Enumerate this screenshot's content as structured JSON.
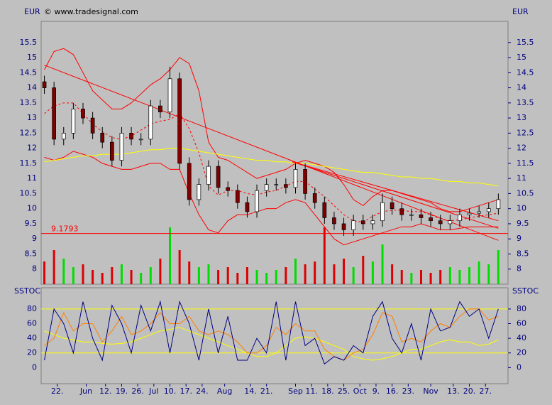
{
  "chart_data": [
    {
      "type": "candlestick",
      "title": "© www.tradesignal.com",
      "ylabel": "EUR",
      "x": [
        0,
        3,
        6,
        9,
        12,
        15,
        18,
        21,
        24,
        27,
        30,
        33,
        36,
        39,
        42,
        45,
        48,
        51,
        54,
        57,
        60,
        63,
        66,
        69,
        72,
        75,
        78,
        81,
        84,
        87,
        90,
        93,
        96,
        99,
        102,
        105,
        108,
        111,
        114,
        117,
        120,
        123,
        126,
        129,
        132,
        135,
        138,
        141
      ],
      "open": [
        14.2,
        14.0,
        12.3,
        12.5,
        13.3,
        13.0,
        12.5,
        12.2,
        11.6,
        12.5,
        12.3,
        12.3,
        13.4,
        13.2,
        14.3,
        11.5,
        10.3,
        10.8,
        11.4,
        10.7,
        10.6,
        10.2,
        9.9,
        10.6,
        10.8,
        10.8,
        10.7,
        11.3,
        10.5,
        10.2,
        9.7,
        9.5,
        9.3,
        9.6,
        9.5,
        9.6,
        10.2,
        10.0,
        9.8,
        9.8,
        9.7,
        9.6,
        9.5,
        9.6,
        9.8,
        9.85,
        9.9,
        10.0
      ],
      "high": [
        14.4,
        14.2,
        12.7,
        13.5,
        13.5,
        13.2,
        12.7,
        12.4,
        12.7,
        12.7,
        12.5,
        13.6,
        13.6,
        14.7,
        14.5,
        11.7,
        11.0,
        11.6,
        11.6,
        10.9,
        10.8,
        10.4,
        10.8,
        11.0,
        11.0,
        11.0,
        11.5,
        11.5,
        10.7,
        10.4,
        9.9,
        9.7,
        9.8,
        9.8,
        9.8,
        10.5,
        10.4,
        10.2,
        10.0,
        10.0,
        9.9,
        9.8,
        9.8,
        10.0,
        10.0,
        10.1,
        10.2,
        10.5
      ],
      "low": [
        13.8,
        12.1,
        12.1,
        12.3,
        12.8,
        12.3,
        12.0,
        11.4,
        11.4,
        12.1,
        12.1,
        12.1,
        13.0,
        13.0,
        11.3,
        10.1,
        10.1,
        10.6,
        10.5,
        10.4,
        10.0,
        9.7,
        9.7,
        10.4,
        10.6,
        10.5,
        10.5,
        10.3,
        10.0,
        9.5,
        9.3,
        9.1,
        9.1,
        9.3,
        9.3,
        9.4,
        9.8,
        9.6,
        9.6,
        9.5,
        9.4,
        9.3,
        9.3,
        9.4,
        9.6,
        9.7,
        9.7,
        9.8
      ],
      "close": [
        14.0,
        12.3,
        12.5,
        13.3,
        13.0,
        12.5,
        12.2,
        11.6,
        12.5,
        12.3,
        12.3,
        13.4,
        13.2,
        14.3,
        11.5,
        10.3,
        10.8,
        11.4,
        10.7,
        10.6,
        10.2,
        9.9,
        10.6,
        10.8,
        10.8,
        10.7,
        11.3,
        10.5,
        10.2,
        9.7,
        9.5,
        9.3,
        9.6,
        9.5,
        9.6,
        10.2,
        10.0,
        9.8,
        9.8,
        9.7,
        9.6,
        9.5,
        9.6,
        9.8,
        9.85,
        9.9,
        10.0,
        10.3
      ],
      "up_color": "#ffffff",
      "down_color": "#800000",
      "volume": [
        40,
        60,
        45,
        30,
        35,
        25,
        20,
        30,
        35,
        25,
        20,
        30,
        45,
        100,
        60,
        40,
        30,
        35,
        25,
        30,
        20,
        30,
        25,
        20,
        25,
        30,
        45,
        35,
        40,
        100,
        35,
        45,
        30,
        50,
        40,
        70,
        35,
        25,
        20,
        25,
        20,
        25,
        30,
        25,
        30,
        40,
        35,
        60
      ],
      "volume_up_color": "#00dd00",
      "volume_down_color": "#dd0000",
      "series": [
        {
          "color": "#ff0000",
          "dashed": false,
          "values": [
            14.6,
            15.2,
            15.3,
            15.1,
            14.5,
            13.9,
            13.6,
            13.3,
            13.3,
            13.5,
            13.8,
            14.1,
            14.3,
            14.6,
            15.0,
            14.8,
            13.9,
            12.2,
            11.7,
            11.6,
            11.4,
            11.2,
            11.0,
            11.1,
            11.2,
            11.3,
            11.5,
            11.6,
            11.5,
            11.4,
            11.2,
            10.8,
            10.3,
            10.1,
            10.4,
            10.6,
            10.6,
            10.5,
            10.4,
            10.3,
            10.2,
            10.0,
            9.9,
            9.9,
            10.0,
            10.1,
            10.2,
            10.3
          ]
        },
        {
          "color": "#ff0000",
          "dashed": true,
          "values": [
            13.15,
            13.4,
            13.5,
            13.5,
            13.15,
            12.8,
            12.55,
            12.35,
            12.3,
            12.4,
            12.6,
            12.8,
            12.9,
            12.95,
            13.15,
            12.65,
            11.85,
            10.75,
            10.45,
            10.6,
            10.6,
            10.5,
            10.45,
            10.55,
            10.6,
            10.75,
            10.9,
            10.9,
            10.65,
            10.4,
            10.1,
            9.8,
            9.6,
            9.55,
            9.75,
            9.9,
            9.95,
            9.95,
            9.9,
            9.9,
            9.8,
            9.65,
            9.6,
            9.63,
            9.7,
            9.75,
            9.8,
            9.85
          ]
        },
        {
          "color": "#ff0000",
          "dashed": false,
          "values": [
            11.7,
            11.6,
            11.7,
            11.9,
            11.8,
            11.7,
            11.5,
            11.4,
            11.3,
            11.3,
            11.4,
            11.5,
            11.5,
            11.3,
            11.3,
            10.5,
            9.8,
            9.3,
            9.2,
            9.6,
            9.8,
            9.8,
            9.9,
            10.0,
            10.0,
            10.2,
            10.3,
            10.2,
            9.8,
            9.4,
            9.0,
            8.8,
            8.9,
            9.0,
            9.1,
            9.2,
            9.3,
            9.4,
            9.4,
            9.5,
            9.4,
            9.3,
            9.3,
            9.35,
            9.4,
            9.4,
            9.4,
            9.4
          ]
        },
        {
          "color": "#ffff00",
          "dashed": false,
          "values": [
            11.55,
            11.6,
            11.65,
            11.7,
            11.75,
            11.75,
            11.8,
            11.8,
            11.8,
            11.85,
            11.9,
            11.95,
            11.95,
            12.0,
            12.0,
            11.95,
            11.9,
            11.85,
            11.8,
            11.75,
            11.7,
            11.65,
            11.6,
            11.6,
            11.55,
            11.55,
            11.5,
            11.5,
            11.45,
            11.4,
            11.35,
            11.3,
            11.25,
            11.2,
            11.2,
            11.15,
            11.1,
            11.05,
            11.05,
            11.0,
            11.0,
            10.95,
            10.9,
            10.9,
            10.85,
            10.85,
            10.8,
            10.75
          ]
        }
      ],
      "trendlines": [
        {
          "color": "#ff0000",
          "x": [
            0,
            141
          ],
          "values": [
            14.75,
            8.95
          ]
        },
        {
          "color": "#ff0000",
          "x": [
            77,
            141
          ],
          "values": [
            11.55,
            9.35
          ]
        },
        {
          "color": "#ff0000",
          "x": [
            77,
            141
          ],
          "values": [
            11.55,
            9.6
          ]
        }
      ],
      "reference_value": 9.1793,
      "reference_color": "#ff0000",
      "xlim": [
        -1,
        144
      ],
      "ylim": [
        7.5,
        16.2
      ],
      "yticks": [
        8,
        8.5,
        9,
        9.5,
        10,
        10.5,
        11,
        11.5,
        12,
        12.5,
        13,
        13.5,
        14,
        14.5,
        15,
        15.5
      ]
    },
    {
      "type": "line",
      "ylabel": "SSTOC",
      "x": [
        0,
        3,
        6,
        9,
        12,
        15,
        18,
        21,
        24,
        27,
        30,
        33,
        36,
        39,
        42,
        45,
        48,
        51,
        54,
        57,
        60,
        63,
        66,
        69,
        72,
        75,
        78,
        81,
        84,
        87,
        90,
        93,
        96,
        99,
        102,
        105,
        108,
        111,
        114,
        117,
        120,
        123,
        126,
        129,
        132,
        135,
        138,
        141
      ],
      "series": [
        {
          "color": "#ffff00",
          "values": [
            50,
            45,
            40,
            38,
            35,
            35,
            33,
            32,
            33,
            35,
            40,
            45,
            50,
            52,
            55,
            50,
            45,
            40,
            35,
            30,
            25,
            20,
            15,
            15,
            20,
            30,
            40,
            42,
            40,
            35,
            30,
            25,
            15,
            12,
            10,
            12,
            15,
            20,
            25,
            25,
            30,
            35,
            38,
            35,
            35,
            30,
            32,
            38
          ]
        },
        {
          "color": "#ff8000",
          "values": [
            30,
            40,
            75,
            50,
            60,
            60,
            35,
            50,
            70,
            45,
            50,
            60,
            75,
            60,
            60,
            70,
            50,
            45,
            50,
            45,
            35,
            20,
            20,
            30,
            55,
            45,
            60,
            50,
            50,
            25,
            15,
            10,
            20,
            25,
            45,
            75,
            70,
            35,
            40,
            35,
            50,
            60,
            55,
            70,
            80,
            80,
            65,
            70
          ]
        },
        {
          "color": "#000080",
          "values": [
            10,
            80,
            60,
            20,
            90,
            40,
            10,
            85,
            60,
            20,
            85,
            50,
            90,
            20,
            90,
            60,
            10,
            80,
            20,
            70,
            10,
            10,
            40,
            20,
            90,
            10,
            90,
            30,
            40,
            5,
            15,
            10,
            30,
            20,
            70,
            90,
            40,
            20,
            60,
            10,
            80,
            50,
            55,
            90,
            70,
            80,
            40,
            80
          ]
        }
      ],
      "levels": [
        20,
        80
      ],
      "level_color": "#ffff00",
      "xlim": [
        -1,
        144
      ],
      "ylim": [
        -22,
        109
      ],
      "yticks": [
        0,
        20,
        40,
        60,
        80
      ],
      "xticks": [
        {
          "value": 4,
          "label": "22."
        },
        {
          "value": 13,
          "label": "Jun"
        },
        {
          "value": 19,
          "label": "12."
        },
        {
          "value": 24,
          "label": "19."
        },
        {
          "value": 29,
          "label": "26."
        },
        {
          "value": 34,
          "label": "Jul"
        },
        {
          "value": 39,
          "label": "10."
        },
        {
          "value": 44,
          "label": "17."
        },
        {
          "value": 49,
          "label": "24."
        },
        {
          "value": 56,
          "label": "Aug"
        },
        {
          "value": 64,
          "label": "14."
        },
        {
          "value": 69,
          "label": "21."
        },
        {
          "value": 78,
          "label": "Sep"
        },
        {
          "value": 83,
          "label": "11."
        },
        {
          "value": 88,
          "label": "18."
        },
        {
          "value": 93,
          "label": "25."
        },
        {
          "value": 98,
          "label": "Oct"
        },
        {
          "value": 103,
          "label": "9."
        },
        {
          "value": 108,
          "label": "16."
        },
        {
          "value": 113,
          "label": "23."
        },
        {
          "value": 120,
          "label": "Nov"
        },
        {
          "value": 127,
          "label": "13."
        },
        {
          "value": 132,
          "label": "20."
        },
        {
          "value": 137,
          "label": "27."
        }
      ]
    }
  ]
}
